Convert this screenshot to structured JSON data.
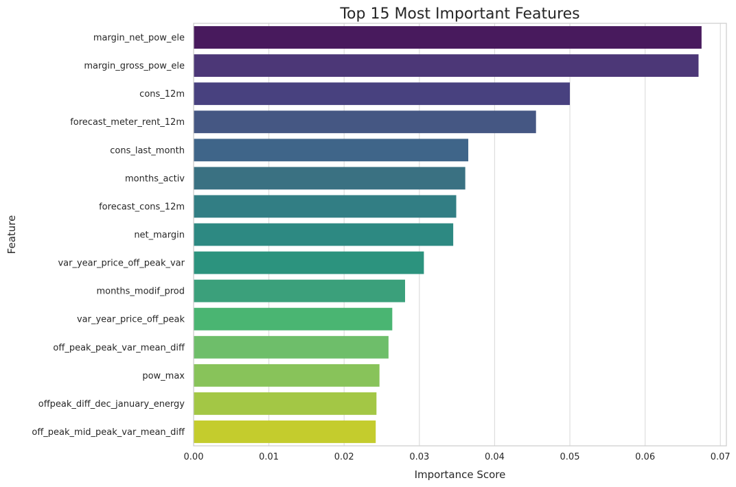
{
  "chart_data": {
    "type": "bar",
    "orientation": "horizontal",
    "title": "Top 15 Most Important Features",
    "xlabel": "Importance Score",
    "ylabel": "Feature",
    "xlim": [
      0,
      0.0708
    ],
    "xticks": [
      0.0,
      0.01,
      0.02,
      0.03,
      0.04,
      0.05,
      0.06,
      0.07
    ],
    "xtick_labels": [
      "0.00",
      "0.01",
      "0.02",
      "0.03",
      "0.04",
      "0.05",
      "0.06",
      "0.07"
    ],
    "grid": "vertical",
    "palette": "viridis",
    "categories": [
      "margin_net_pow_ele",
      "margin_gross_pow_ele",
      "cons_12m",
      "forecast_meter_rent_12m",
      "cons_last_month",
      "months_activ",
      "forecast_cons_12m",
      "net_margin",
      "var_year_price_off_peak_var",
      "months_modif_prod",
      "var_year_price_off_peak",
      "off_peak_peak_var_mean_diff",
      "pow_max",
      "offpeak_diff_dec_january_energy",
      "off_peak_mid_peak_var_mean_diff"
    ],
    "values": [
      0.0675,
      0.0671,
      0.05,
      0.0455,
      0.0365,
      0.0361,
      0.0349,
      0.0345,
      0.0306,
      0.0281,
      0.0264,
      0.0259,
      0.0247,
      0.0243,
      0.0242
    ],
    "colors": [
      "#481a5d",
      "#4c3777",
      "#48417f",
      "#455783",
      "#3f6589",
      "#3a7182",
      "#327e84",
      "#2d8982",
      "#2c937e",
      "#3ba07b",
      "#4ab572",
      "#6ebe6a",
      "#88c35a",
      "#a3c745",
      "#c4cc2d"
    ]
  }
}
